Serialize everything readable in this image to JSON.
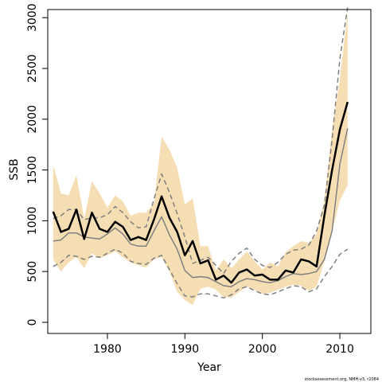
{
  "chart_data": {
    "type": "line",
    "title": "",
    "xlabel": "Year",
    "ylabel": "SSB",
    "xlim": [
      1972.3,
      2014
    ],
    "ylim": [
      -110,
      3080
    ],
    "x_ticks": [
      1980,
      1990,
      2000,
      2010
    ],
    "y_ticks": [
      0,
      500,
      1000,
      1500,
      2000,
      2500,
      3000
    ],
    "grid": false,
    "legend": "none",
    "colors": {
      "band": "#f5deb3",
      "estimate": "#000000",
      "alternate": "#808080",
      "dashed": "#808080"
    },
    "x": [
      1973,
      1974,
      1975,
      1976,
      1977,
      1978,
      1979,
      1980,
      1981,
      1982,
      1983,
      1984,
      1985,
      1986,
      1987,
      1988,
      1989,
      1990,
      1991,
      1992,
      1993,
      1994,
      1995,
      1996,
      1997,
      1998,
      1999,
      2000,
      2001,
      2002,
      2003,
      2004,
      2005,
      2006,
      2007,
      2008,
      2009,
      2010,
      2011
    ],
    "series": [
      {
        "role": "band_lower",
        "values": [
          620,
          500,
          590,
          640,
          530,
          680,
          630,
          660,
          700,
          640,
          590,
          560,
          540,
          620,
          640,
          500,
          300,
          220,
          170,
          330,
          350,
          320,
          250,
          240,
          300,
          350,
          320,
          280,
          290,
          320,
          350,
          370,
          360,
          310,
          350,
          600,
          900,
          1200,
          1350
        ]
      },
      {
        "role": "band_upper",
        "values": [
          1550,
          1270,
          1250,
          1450,
          1020,
          1390,
          1270,
          1130,
          1250,
          1190,
          1050,
          1080,
          1080,
          1170,
          1830,
          1700,
          1520,
          1160,
          1220,
          750,
          750,
          510,
          620,
          530,
          620,
          700,
          600,
          520,
          590,
          550,
          690,
          750,
          800,
          780,
          870,
          1200,
          1900,
          2400,
          3050
        ]
      },
      {
        "role": "estimate",
        "values": [
          1090,
          890,
          920,
          1110,
          820,
          1080,
          920,
          890,
          990,
          940,
          810,
          840,
          810,
          1010,
          1240,
          1030,
          890,
          660,
          800,
          580,
          610,
          420,
          460,
          390,
          490,
          520,
          460,
          470,
          420,
          420,
          510,
          490,
          620,
          600,
          550,
          1050,
          1500,
          1900,
          2170
        ]
      },
      {
        "role": "alternate",
        "values": [
          800,
          810,
          880,
          880,
          840,
          830,
          820,
          870,
          930,
          870,
          770,
          750,
          750,
          900,
          1040,
          860,
          720,
          510,
          440,
          450,
          440,
          400,
          360,
          350,
          400,
          430,
          420,
          400,
          390,
          410,
          450,
          480,
          470,
          480,
          500,
          620,
          900,
          1560,
          1910
        ]
      },
      {
        "role": "dashed_upper",
        "values": [
          1020,
          1050,
          1110,
          1110,
          1010,
          1030,
          1030,
          1060,
          1140,
          1080,
          990,
          930,
          940,
          1210,
          1460,
          1280,
          1070,
          840,
          580,
          610,
          640,
          560,
          480,
          600,
          680,
          730,
          620,
          560,
          540,
          590,
          670,
          710,
          720,
          760,
          900,
          1150,
          1800,
          2600,
          3100
        ]
      },
      {
        "role": "dashed_lower",
        "values": [
          550,
          590,
          660,
          650,
          620,
          650,
          640,
          680,
          720,
          680,
          600,
          580,
          570,
          630,
          660,
          520,
          380,
          260,
          250,
          280,
          280,
          260,
          240,
          270,
          330,
          350,
          310,
          280,
          270,
          300,
          330,
          360,
          350,
          300,
          330,
          450,
          550,
          670,
          720
        ]
      }
    ]
  },
  "footer": {
    "credit": "stockassessment.org, NMH-v3, r2084"
  }
}
